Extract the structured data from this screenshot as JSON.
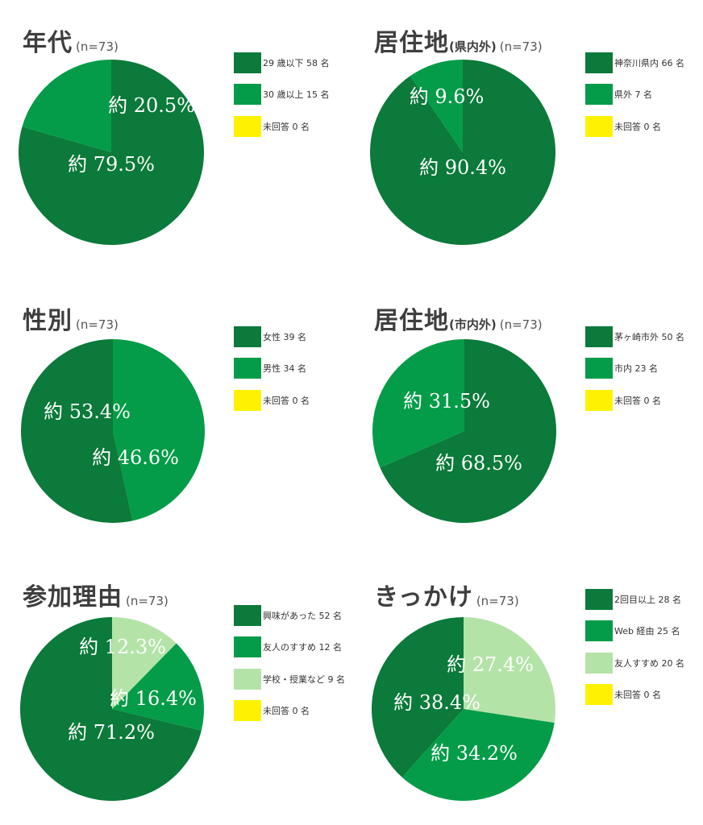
{
  "colors": {
    "dark": "#0b7a3a",
    "mid": "#049c48",
    "light": "#b4e3a8",
    "yellow": "#fff200"
  },
  "chart_data": [
    {
      "type": "pie",
      "title": "年代",
      "title_sub": "",
      "n_label": "(n=73)",
      "legend": [
        "29 歳以下 58 名",
        "30 歳以上 15 名",
        "未回答 0 名"
      ],
      "legend_colors": [
        "#0b7a3a",
        "#049c48",
        "#fff200"
      ],
      "slices": [
        {
          "label": "29 歳以下",
          "value": 58,
          "color": "#0b7a3a"
        },
        {
          "label": "30 歳以上",
          "value": 15,
          "color": "#049c48"
        },
        {
          "label": "未回答",
          "value": 0,
          "color": "#fff200"
        }
      ],
      "slice_labels": [
        "約 79.5%",
        "約 20.5%"
      ]
    },
    {
      "type": "pie",
      "title": "居住地",
      "title_sub": "(県内外)",
      "n_label": "(n=73)",
      "legend": [
        "神奈川県内 66 名",
        "県外 7 名",
        "未回答 0 名"
      ],
      "legend_colors": [
        "#0b7a3a",
        "#049c48",
        "#fff200"
      ],
      "slices": [
        {
          "label": "神奈川県内",
          "value": 66,
          "color": "#0b7a3a"
        },
        {
          "label": "県外",
          "value": 7,
          "color": "#049c48"
        },
        {
          "label": "未回答",
          "value": 0,
          "color": "#fff200"
        }
      ],
      "slice_labels": [
        "約 90.4%",
        "約 9.6%"
      ]
    },
    {
      "type": "pie",
      "title": "性別",
      "title_sub": "",
      "n_label": "(n=73)",
      "legend": [
        "女性 39 名",
        "男性 34 名",
        "未回答 0 名"
      ],
      "legend_colors": [
        "#0b7a3a",
        "#049c48",
        "#fff200"
      ],
      "slices": [
        {
          "label": "男性",
          "value": 34,
          "color": "#049c48"
        },
        {
          "label": "女性",
          "value": 39,
          "color": "#0b7a3a"
        },
        {
          "label": "未回答",
          "value": 0,
          "color": "#fff200"
        }
      ],
      "slice_labels": [
        "約 46.6%",
        "約 53.4%"
      ]
    },
    {
      "type": "pie",
      "title": "居住地",
      "title_sub": "(市内外)",
      "n_label": "(n=73)",
      "legend": [
        "茅ヶ崎市外 50 名",
        "市内 23 名",
        "未回答 0 名"
      ],
      "legend_colors": [
        "#0b7a3a",
        "#049c48",
        "#fff200"
      ],
      "slices": [
        {
          "label": "茅ヶ崎市外",
          "value": 50,
          "color": "#0b7a3a"
        },
        {
          "label": "市内",
          "value": 23,
          "color": "#049c48"
        },
        {
          "label": "未回答",
          "value": 0,
          "color": "#fff200"
        }
      ],
      "slice_labels": [
        "約 68.5%",
        "約 31.5%"
      ]
    },
    {
      "type": "pie",
      "title": "参加理由",
      "title_sub": "",
      "n_label": "(n=73)",
      "legend": [
        "興味があった 52 名",
        "友人のすすめ 12 名",
        "学校・授業など 9 名",
        "未回答 0 名"
      ],
      "legend_colors": [
        "#0b7a3a",
        "#049c48",
        "#b4e3a8",
        "#fff200"
      ],
      "slices": [
        {
          "label": "学校・授業など",
          "value": 9,
          "color": "#b4e3a8"
        },
        {
          "label": "友人のすすめ",
          "value": 12,
          "color": "#049c48"
        },
        {
          "label": "興味があった",
          "value": 52,
          "color": "#0b7a3a"
        },
        {
          "label": "未回答",
          "value": 0,
          "color": "#fff200"
        }
      ],
      "slice_labels": [
        "約 12.3%",
        "約 16.4%",
        "約 71.2%"
      ]
    },
    {
      "type": "pie",
      "title": "きっかけ",
      "title_sub": "",
      "n_label": "(n=73)",
      "legend": [
        "2回目以上 28 名",
        "Web 経由 25 名",
        "友人すすめ 20 名",
        "未回答 0 名"
      ],
      "legend_colors": [
        "#0b7a3a",
        "#049c48",
        "#b4e3a8",
        "#fff200"
      ],
      "slices": [
        {
          "label": "友人すすめ",
          "value": 20,
          "color": "#b4e3a8"
        },
        {
          "label": "Web 経由",
          "value": 25,
          "color": "#049c48"
        },
        {
          "label": "2回目以上",
          "value": 28,
          "color": "#0b7a3a"
        },
        {
          "label": "未回答",
          "value": 0,
          "color": "#fff200"
        }
      ],
      "slice_labels": [
        "約 27.4%",
        "約 34.2%",
        "約 38.4%"
      ]
    }
  ]
}
